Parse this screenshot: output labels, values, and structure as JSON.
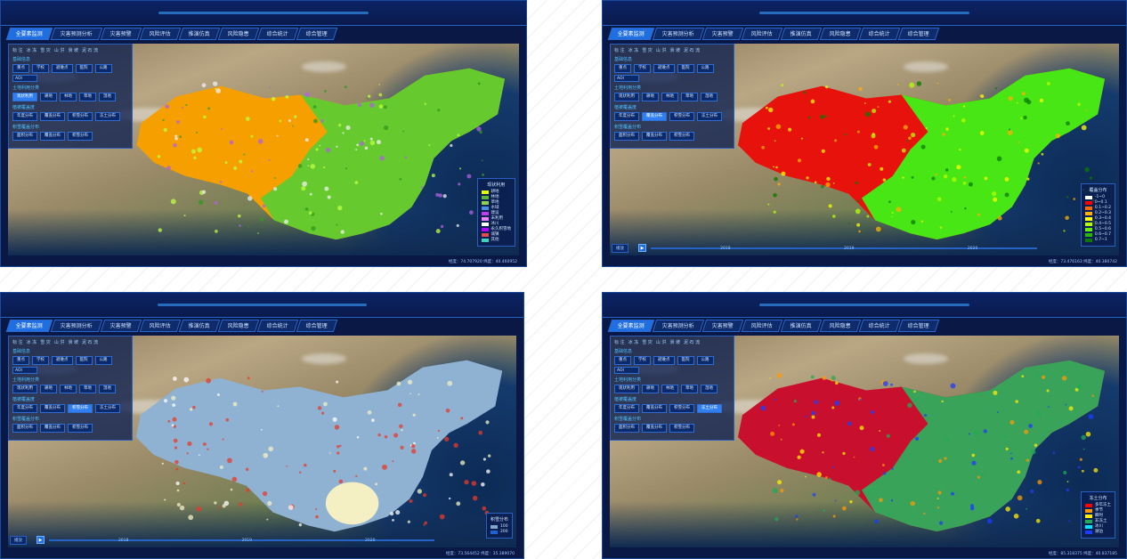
{
  "nav_tabs": [
    "全要素监测",
    "灾害预测分析",
    "灾害预警",
    "风险评估",
    "推演仿真",
    "风险隐患",
    "综合统计",
    "综合管理"
  ],
  "panels": [
    {
      "sidebar": {
        "top": [
          "标 注",
          "冰 冻",
          "雪 灾",
          "山 洪",
          "滑 坡",
          "泥 石 流"
        ],
        "sec1": "基础信息",
        "row1": [
          "重点",
          "学校",
          "避难点",
          "医院",
          "公路"
        ],
        "select": "AOI",
        "sec2": "土地利用分类",
        "row2": [
          "现状利用",
          "耕地",
          "林地",
          "草地",
          "湿地"
        ],
        "sec3": "植被覆盖度",
        "row3": [
          "年度分布",
          "覆盖分布",
          "积雪分布",
          "冻土分布"
        ],
        "sec4": "积雪覆盖分布",
        "row4": [
          "面积分布",
          "覆盖分布",
          "积雪分布"
        ],
        "active_rows": {
          "row2": 0,
          "row3": -1
        }
      },
      "legend": {
        "title": "现状利用",
        "items": [
          "耕地",
          "林地",
          "草地",
          "水域",
          "建设",
          "未利用",
          "冰川",
          "永久积雪地",
          "城镇",
          "其他"
        ],
        "colors": [
          "#e2ff00",
          "#5bb33a",
          "#8fd14f",
          "#4b8be6",
          "#c03cf0",
          "#f080ff",
          "#ffffff",
          "#b400ff",
          "#e64a4a",
          "#3ad4c0"
        ]
      },
      "timeline": null,
      "status": "经度：74.707920  纬度：40.460952"
    },
    {
      "sidebar": {
        "top": [
          "标 注",
          "冰 冻",
          "雪 灾",
          "山 洪",
          "滑 坡",
          "泥 石 流"
        ],
        "sec1": "基础信息",
        "row1": [
          "重点",
          "学校",
          "避难点",
          "医院",
          "公路"
        ],
        "select": "AOI",
        "sec2": "土地利用分类",
        "row2": [
          "现状利用",
          "耕地",
          "林地",
          "草地",
          "湿地"
        ],
        "sec3": "植被覆盖度",
        "row3": [
          "年度分布",
          "覆盖分布",
          "积雪分布",
          "冻土分布"
        ],
        "sec4": "积雪覆盖分布",
        "row4": [
          "面积分布",
          "覆盖分布",
          "积雪分布"
        ],
        "active_rows": {
          "row2": -1,
          "row3": 1
        }
      },
      "legend": {
        "title": "覆盖分布",
        "items": [
          "-1~0",
          "0~0.1",
          "0.1~0.2",
          "0.2~0.3",
          "0.3~0.4",
          "0.4~0.5",
          "0.5~0.6",
          "0.6~0.7",
          "0.7~1"
        ],
        "colors": [
          "#ffffff",
          "#ff0000",
          "#ff6a00",
          "#ffb000",
          "#ffff00",
          "#b5ff00",
          "#66ee00",
          "#22bb00",
          "#0a7a00"
        ]
      },
      "timeline": {
        "label": "播放",
        "years": [
          "2018",
          "2019",
          "2020"
        ]
      },
      "status": "经度：73.476163  纬度：40.380742"
    },
    {
      "sidebar": {
        "top": [
          "标 注",
          "冰 冻",
          "雪 灾",
          "山 洪",
          "滑 坡",
          "泥 石 流"
        ],
        "sec1": "基础信息",
        "row1": [
          "重点",
          "学校",
          "避难点",
          "医院",
          "公路"
        ],
        "select": "AOI",
        "sec2": "土地利用分类",
        "row2": [
          "现状利用",
          "耕地",
          "林地",
          "草地",
          "湿地"
        ],
        "sec3": "植被覆盖度",
        "row3": [
          "年度分布",
          "覆盖分布",
          "积雪分布",
          "冻土分布"
        ],
        "sec4": "积雪覆盖分布",
        "row4": [
          "面积分布",
          "覆盖分布",
          "积雪分布"
        ],
        "active_rows": {
          "row2": -1,
          "row3": 2
        }
      },
      "legend": {
        "title": "积雪分布",
        "items": [
          "100",
          "200"
        ],
        "colors": [
          "#7fa8c9",
          "#1b63d6"
        ]
      },
      "timeline": {
        "label": "播放",
        "years": [
          "2018",
          "2019",
          "2020"
        ]
      },
      "status": "经度：73.564452  纬度：35.389070"
    },
    {
      "sidebar": {
        "top": [
          "标 注",
          "冰 冻",
          "雪 灾",
          "山 洪",
          "滑 坡",
          "泥 石 流"
        ],
        "sec1": "基础信息",
        "row1": [
          "重点",
          "学校",
          "避难点",
          "医院",
          "公路"
        ],
        "select": "AOI",
        "sec2": "土地利用分类",
        "row2": [
          "现状利用",
          "耕地",
          "林地",
          "草地",
          "湿地"
        ],
        "sec3": "植被覆盖度",
        "row3": [
          "年度分布",
          "覆盖分布",
          "积雪分布",
          "冻土分布"
        ],
        "sec4": "积雪覆盖分布",
        "row4": [
          "面积分布",
          "覆盖分布",
          "积雪分布"
        ],
        "active_rows": {
          "row2": -1,
          "row3": 3
        }
      },
      "legend": {
        "title": "冻土分布",
        "items": [
          "多年冻土",
          "季节",
          "瞬时",
          "非冻土",
          "冰川",
          "湖泊"
        ],
        "colors": [
          "#ff0000",
          "#ff9900",
          "#ffee00",
          "#22aa55",
          "#00e5ff",
          "#1b3cff"
        ]
      },
      "timeline": null,
      "status": "经度：85.318375  纬度：40.837185"
    }
  ]
}
